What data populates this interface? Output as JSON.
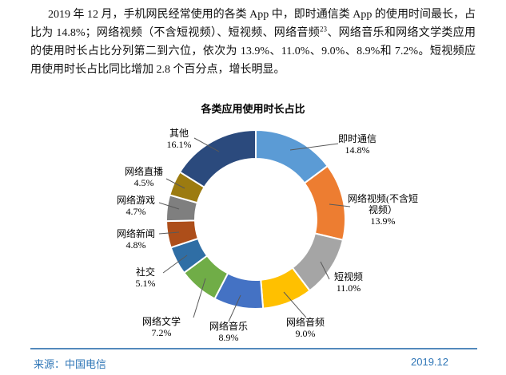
{
  "paragraph": {
    "before_sup": "2019 年 12 月，手机网民经常使用的各类 App 中，即时通信类 App 的使用时间最长，占比为 14.8%；网络视频（不含短视频）、短视频、网络音频",
    "sup": "23",
    "after_sup": "、网络音乐和网络文学类应用的使用时长占比分列第二到六位，依次为 13.9%、11.0%、9.0%、8.9%和 7.2%。短视频应用使用时长占比同比增加 2.8 个百分点，增长明显。"
  },
  "chart_data": {
    "type": "pie",
    "subtype": "donut",
    "title": "各类应用使用时长占比",
    "unit": "%",
    "start_angle_deg": 0,
    "direction": "clockwise",
    "hole_ratio": 0.68,
    "legend": "none",
    "categories": [
      "即时通信",
      "网络视频(不含短视频）",
      "短视频",
      "网络音频",
      "网络音乐",
      "网络文学",
      "社交",
      "网络新闻",
      "网络游戏",
      "网络直播",
      "其他"
    ],
    "values": [
      14.8,
      13.9,
      11.0,
      9.0,
      8.9,
      7.2,
      5.1,
      4.8,
      4.7,
      4.5,
      16.1
    ],
    "slices": [
      {
        "label": "即时通信",
        "value": 14.8,
        "display": "14.8%",
        "color": "#5B9BD5"
      },
      {
        "label": "网络视频(不含短视频）",
        "value": 13.9,
        "display": "13.9%",
        "color": "#ED7D31"
      },
      {
        "label": "短视频",
        "value": 11.0,
        "display": "11.0%",
        "color": "#A5A5A5"
      },
      {
        "label": "网络音频",
        "value": 9.0,
        "display": "9.0%",
        "color": "#FFC000"
      },
      {
        "label": "网络音乐",
        "value": 8.9,
        "display": "8.9%",
        "color": "#4472C4"
      },
      {
        "label": "网络文学",
        "value": 7.2,
        "display": "7.2%",
        "color": "#70AD47"
      },
      {
        "label": "社交",
        "value": 5.1,
        "display": "5.1%",
        "color": "#2F6EA5"
      },
      {
        "label": "网络新闻",
        "value": 4.8,
        "display": "4.8%",
        "color": "#AD4E1A"
      },
      {
        "label": "网络游戏",
        "value": 4.7,
        "display": "4.7%",
        "color": "#7F7F7F"
      },
      {
        "label": "网络直播",
        "value": 4.5,
        "display": "4.5%",
        "color": "#9C7B10"
      },
      {
        "label": "其他",
        "value": 16.1,
        "display": "16.1%",
        "color": "#2B4A7D"
      }
    ],
    "leader_line_color": "#595959"
  },
  "footer": {
    "source": "来源：中国电信",
    "date": "2019.12"
  }
}
